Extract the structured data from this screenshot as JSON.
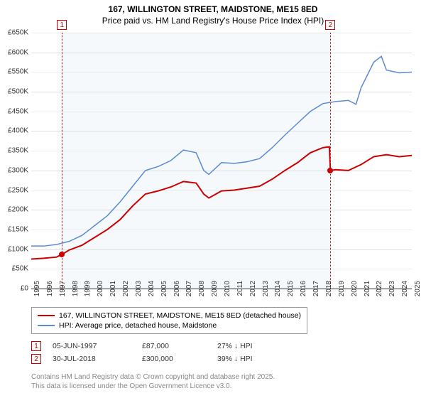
{
  "title": "167, WILLINGTON STREET, MAIDSTONE, ME15 8ED",
  "subtitle": "Price paid vs. HM Land Registry's House Price Index (HPI)",
  "chart": {
    "type": "line",
    "background_color": "#ffffff",
    "gap_shade_color": "#f5f9fc",
    "grid_color": "#cccccc",
    "grid_color_zero": "#333333",
    "font_family": "Arial",
    "label_fontsize": 10,
    "title_fontsize": 12,
    "x": {
      "min": 1995,
      "max": 2025,
      "tick_step": 1,
      "labels": [
        "1995",
        "1996",
        "1997",
        "1998",
        "1999",
        "2000",
        "2001",
        "2002",
        "2003",
        "2004",
        "2005",
        "2006",
        "2007",
        "2008",
        "2009",
        "2010",
        "2011",
        "2012",
        "2013",
        "2014",
        "2015",
        "2016",
        "2017",
        "2018",
        "2019",
        "2020",
        "2021",
        "2022",
        "2023",
        "2024",
        "2025"
      ]
    },
    "y": {
      "min": 0,
      "max": 650000,
      "tick_step": 50000,
      "labels": [
        "£0",
        "£50K",
        "£100K",
        "£150K",
        "£200K",
        "£250K",
        "£300K",
        "£350K",
        "£400K",
        "£450K",
        "£500K",
        "£550K",
        "£600K",
        "£650K"
      ]
    },
    "markers": [
      {
        "n": "1",
        "x": 1997.42,
        "y": 87000,
        "line_color": "#cc0000",
        "box_color": "#cc0000"
      },
      {
        "n": "2",
        "x": 2018.58,
        "y": 300000,
        "line_color": "#cc0000",
        "box_color": "#cc0000"
      }
    ],
    "series": [
      {
        "id": "price_paid",
        "label": "167, WILLINGTON STREET, MAIDSTONE, ME15 8ED (detached house)",
        "color": "#cc0000",
        "line_width": 2,
        "data": [
          [
            1995.0,
            75000
          ],
          [
            1996.0,
            77000
          ],
          [
            1997.0,
            80000
          ],
          [
            1997.42,
            87000
          ],
          [
            1998.0,
            98000
          ],
          [
            1999.0,
            110000
          ],
          [
            2000.0,
            130000
          ],
          [
            2001.0,
            150000
          ],
          [
            2002.0,
            175000
          ],
          [
            2003.0,
            210000
          ],
          [
            2004.0,
            240000
          ],
          [
            2005.0,
            248000
          ],
          [
            2006.0,
            258000
          ],
          [
            2007.0,
            272000
          ],
          [
            2008.0,
            268000
          ],
          [
            2008.6,
            240000
          ],
          [
            2009.0,
            230000
          ],
          [
            2010.0,
            248000
          ],
          [
            2011.0,
            250000
          ],
          [
            2012.0,
            255000
          ],
          [
            2013.0,
            260000
          ],
          [
            2014.0,
            278000
          ],
          [
            2015.0,
            300000
          ],
          [
            2016.0,
            320000
          ],
          [
            2017.0,
            345000
          ],
          [
            2018.0,
            358000
          ],
          [
            2018.5,
            360000
          ],
          [
            2018.58,
            300000
          ],
          [
            2019.0,
            302000
          ],
          [
            2020.0,
            300000
          ],
          [
            2021.0,
            315000
          ],
          [
            2022.0,
            335000
          ],
          [
            2023.0,
            340000
          ],
          [
            2024.0,
            335000
          ],
          [
            2025.0,
            338000
          ]
        ]
      },
      {
        "id": "hpi",
        "label": "HPI: Average price, detached house, Maidstone",
        "color": "#5b8bd0",
        "line_width": 1.5,
        "data": [
          [
            1995.0,
            108000
          ],
          [
            1996.0,
            108000
          ],
          [
            1997.0,
            112000
          ],
          [
            1998.0,
            120000
          ],
          [
            1999.0,
            135000
          ],
          [
            2000.0,
            160000
          ],
          [
            2001.0,
            185000
          ],
          [
            2002.0,
            220000
          ],
          [
            2003.0,
            260000
          ],
          [
            2004.0,
            300000
          ],
          [
            2005.0,
            310000
          ],
          [
            2006.0,
            325000
          ],
          [
            2007.0,
            352000
          ],
          [
            2008.0,
            345000
          ],
          [
            2008.6,
            300000
          ],
          [
            2009.0,
            290000
          ],
          [
            2010.0,
            320000
          ],
          [
            2011.0,
            318000
          ],
          [
            2012.0,
            322000
          ],
          [
            2013.0,
            330000
          ],
          [
            2014.0,
            358000
          ],
          [
            2015.0,
            390000
          ],
          [
            2016.0,
            420000
          ],
          [
            2017.0,
            450000
          ],
          [
            2018.0,
            470000
          ],
          [
            2019.0,
            475000
          ],
          [
            2020.0,
            478000
          ],
          [
            2020.6,
            468000
          ],
          [
            2021.0,
            510000
          ],
          [
            2022.0,
            575000
          ],
          [
            2022.6,
            590000
          ],
          [
            2023.0,
            555000
          ],
          [
            2024.0,
            548000
          ],
          [
            2025.0,
            550000
          ]
        ]
      }
    ]
  },
  "legend": {
    "rows": [
      {
        "color": "#cc0000",
        "label": "167, WILLINGTON STREET, MAIDSTONE, ME15 8ED (detached house)"
      },
      {
        "color": "#5b8bd0",
        "label": "HPI: Average price, detached house, Maidstone"
      }
    ]
  },
  "marker_table": [
    {
      "n": "1",
      "date": "05-JUN-1997",
      "price": "£87,000",
      "delta": "27% ↓ HPI"
    },
    {
      "n": "2",
      "date": "30-JUL-2018",
      "price": "£300,000",
      "delta": "39% ↓ HPI"
    }
  ],
  "attribution": {
    "line1": "Contains HM Land Registry data © Crown copyright and database right 2025.",
    "line2": "This data is licensed under the Open Government Licence v3.0."
  }
}
